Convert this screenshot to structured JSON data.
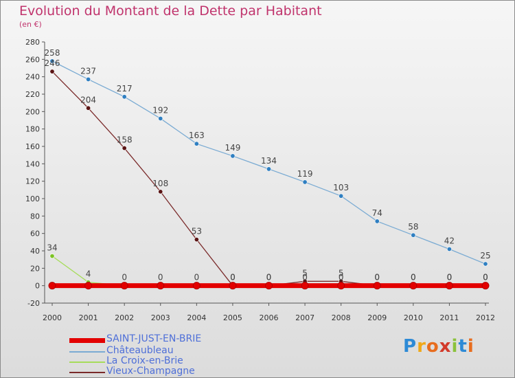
{
  "title": "Evolution du Montant de la Dette par Habitant",
  "unit": "(en €)",
  "chart_data": {
    "type": "line",
    "x": [
      "2000",
      "2001",
      "2002",
      "2003",
      "2004",
      "2005",
      "2006",
      "2007",
      "2008",
      "2009",
      "2010",
      "2011",
      "2012"
    ],
    "ylim": [
      -20,
      280
    ],
    "yticks": [
      -20,
      0,
      20,
      40,
      60,
      80,
      100,
      120,
      140,
      160,
      180,
      200,
      220,
      240,
      260,
      280
    ],
    "grid": false,
    "legend_placement": "bottom-left",
    "series": [
      {
        "name": "SAINT-JUST-EN-BRIE",
        "color": "#e30000",
        "marker": "#e30000",
        "labels": false,
        "values": [
          0,
          0,
          0,
          0,
          0,
          0,
          0,
          0,
          0,
          0,
          0,
          0,
          0
        ]
      },
      {
        "name": "Châteaubleau",
        "color": "#7aabd3",
        "marker": "#2f7fc1",
        "labels": true,
        "values": [
          258,
          237,
          217,
          192,
          163,
          149,
          134,
          119,
          103,
          74,
          58,
          42,
          25
        ]
      },
      {
        "name": "La Croix-en-Brie",
        "color": "#a6dc5a",
        "marker": "#7cc225",
        "labels": true,
        "values": [
          34,
          4,
          0,
          0,
          0,
          0,
          0,
          0,
          0,
          0,
          0,
          0,
          0
        ]
      },
      {
        "name": "Vieux-Champagne",
        "color": "#7a2a2a",
        "marker": "#5a1414",
        "labels": true,
        "values": [
          246,
          204,
          158,
          108,
          53,
          0,
          0,
          5,
          5,
          0,
          0,
          0,
          0
        ]
      }
    ]
  },
  "legend": {
    "items": [
      {
        "label": "SAINT-JUST-EN-BRIE",
        "color": "#e30000"
      },
      {
        "label": "Châteaubleau",
        "color": "#7aabd3"
      },
      {
        "label": "La Croix-en-Brie",
        "color": "#a6dc5a"
      },
      {
        "label": "Vieux-Champagne",
        "color": "#7a2a2a"
      }
    ]
  },
  "logo": {
    "letters": [
      "P",
      "r",
      "o",
      "x",
      "i",
      "t",
      "i"
    ],
    "colors": [
      "#2d8ad6",
      "#f0a818",
      "#e86d1e",
      "#d23a2a",
      "#8bc23c",
      "#2d8ad6",
      "#e86d1e"
    ]
  }
}
